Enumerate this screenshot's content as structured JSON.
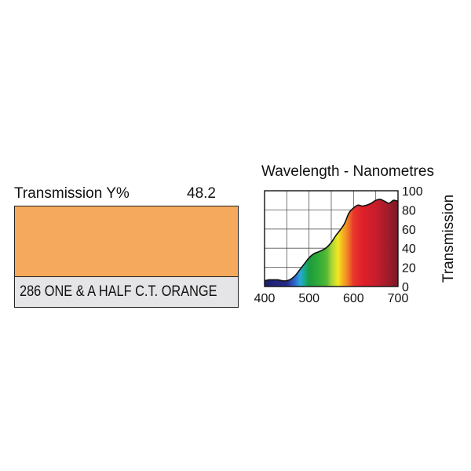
{
  "filter": {
    "transmission_label": "Transmission Y%",
    "transmission_value": "48.2",
    "name": "286 ONE & A HALF C.T. ORANGE",
    "swatch_color": "#f5a95c"
  },
  "chart_data": {
    "type": "area",
    "title": "Wavelength - Nanometres",
    "xlabel": "",
    "ylabel": "Transmission",
    "xlim": [
      400,
      700
    ],
    "ylim": [
      0,
      100
    ],
    "x_ticks": [
      "400",
      "500",
      "600",
      "700"
    ],
    "y_ticks": [
      "0",
      "20",
      "40",
      "60",
      "80",
      "100"
    ],
    "grid": true,
    "series": [
      {
        "x": [
          400,
          410,
          420,
          430,
          440,
          450,
          460,
          470,
          480,
          490,
          500,
          510,
          520,
          530,
          540,
          550,
          560,
          570,
          580,
          590,
          600,
          610,
          620,
          630,
          640,
          650,
          660,
          670,
          680,
          690,
          700
        ],
        "values": [
          6,
          7,
          7,
          7,
          6,
          6,
          8,
          12,
          18,
          24,
          30,
          34,
          36,
          38,
          41,
          46,
          53,
          59,
          66,
          77,
          82,
          85,
          84,
          85,
          87,
          90,
          91,
          89,
          87,
          90,
          89
        ]
      }
    ],
    "spectrum_colors": {
      "400": "#1c1f6b",
      "450": "#262a8a",
      "470": "#2f6fd0",
      "480": "#2aa7d8",
      "490": "#17a98c",
      "500": "#1e9a3e",
      "520": "#2cab38",
      "540": "#57b834",
      "550": "#a4d33a",
      "565": "#f1e91f",
      "575": "#f7b322",
      "585": "#f08a25",
      "600": "#e8372c",
      "620": "#e0202a",
      "650": "#c71d2c",
      "680": "#9c1c2a",
      "700": "#7a1926"
    }
  }
}
